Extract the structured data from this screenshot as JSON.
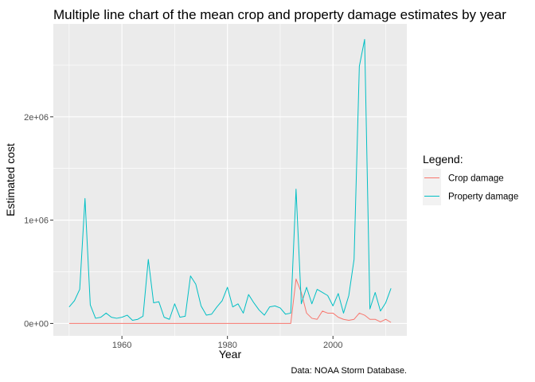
{
  "chart_data": {
    "type": "line",
    "title": "Multiple line chart of the mean crop and property damage estimates by year",
    "xlabel": "Year",
    "ylabel": "Estimated cost",
    "caption": "Data: NOAA Storm Database.",
    "xlim": [
      1947,
      2014
    ],
    "ylim": [
      -120000,
      2900000
    ],
    "x_ticks": [
      1960,
      1980,
      2000
    ],
    "x_tick_labels": [
      "1960",
      "1980",
      "2000"
    ],
    "y_ticks": [
      0,
      1000000,
      2000000
    ],
    "y_tick_labels": [
      "0e+00",
      "1e+06",
      "2e+06"
    ],
    "grid": true,
    "legend": {
      "title": "Legend:",
      "position": "right"
    },
    "x": [
      1950,
      1951,
      1952,
      1953,
      1954,
      1955,
      1956,
      1957,
      1958,
      1959,
      1960,
      1961,
      1962,
      1963,
      1964,
      1965,
      1966,
      1967,
      1968,
      1969,
      1970,
      1971,
      1972,
      1973,
      1974,
      1975,
      1976,
      1977,
      1978,
      1979,
      1980,
      1981,
      1982,
      1983,
      1984,
      1985,
      1986,
      1987,
      1988,
      1989,
      1990,
      1991,
      1992,
      1993,
      1994,
      1995,
      1996,
      1997,
      1998,
      1999,
      2000,
      2001,
      2002,
      2003,
      2004,
      2005,
      2006,
      2007,
      2008,
      2009,
      2010,
      2011
    ],
    "series": [
      {
        "name": "Crop damage",
        "color": "#F8766D",
        "values": [
          0,
          0,
          0,
          0,
          0,
          0,
          0,
          0,
          0,
          0,
          0,
          0,
          0,
          0,
          0,
          0,
          0,
          0,
          0,
          0,
          0,
          0,
          0,
          0,
          0,
          0,
          0,
          0,
          0,
          0,
          0,
          0,
          0,
          0,
          0,
          0,
          0,
          0,
          0,
          0,
          0,
          0,
          0,
          430000,
          300000,
          100000,
          50000,
          40000,
          120000,
          100000,
          100000,
          60000,
          40000,
          30000,
          40000,
          100000,
          80000,
          40000,
          40000,
          15000,
          40000,
          10000
        ]
      },
      {
        "name": "Property damage",
        "color": "#00BFC4",
        "values": [
          160000,
          220000,
          330000,
          1210000,
          180000,
          50000,
          60000,
          100000,
          60000,
          50000,
          60000,
          80000,
          30000,
          40000,
          70000,
          620000,
          200000,
          210000,
          60000,
          40000,
          190000,
          60000,
          70000,
          460000,
          380000,
          170000,
          80000,
          90000,
          160000,
          220000,
          350000,
          160000,
          190000,
          100000,
          280000,
          200000,
          130000,
          80000,
          160000,
          170000,
          150000,
          90000,
          100000,
          1300000,
          190000,
          350000,
          190000,
          330000,
          300000,
          270000,
          170000,
          290000,
          100000,
          270000,
          620000,
          2490000,
          2750000,
          140000,
          300000,
          120000,
          200000,
          340000
        ]
      }
    ]
  }
}
